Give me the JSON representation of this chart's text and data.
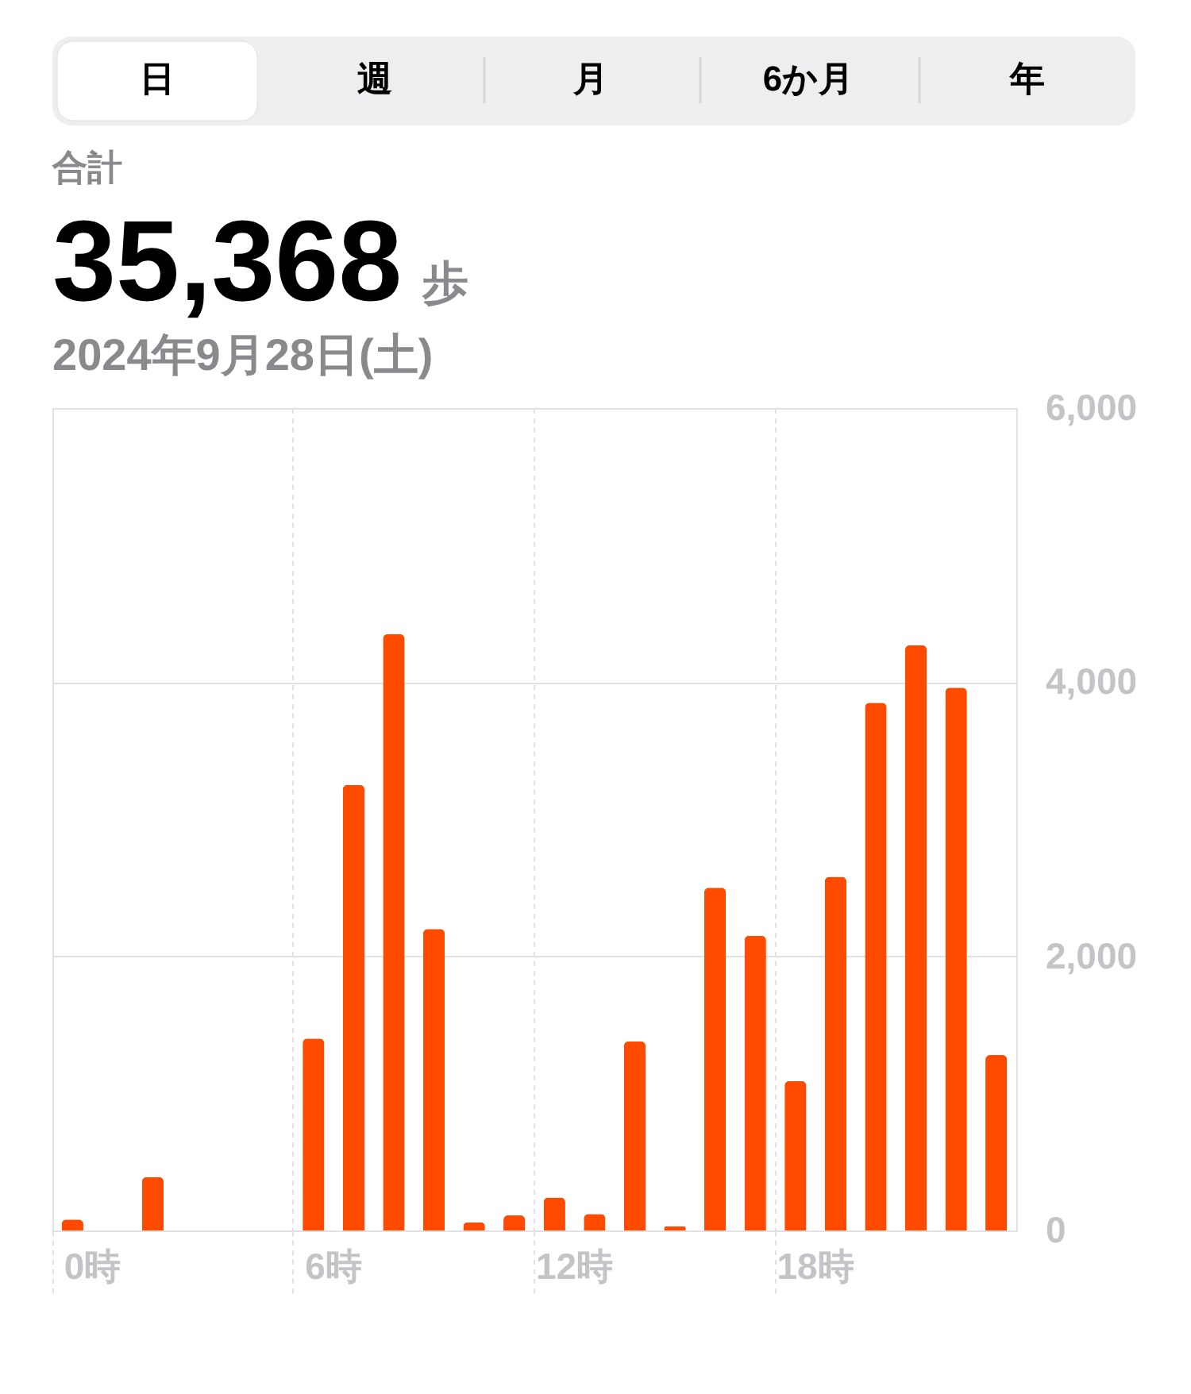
{
  "chart_data": {
    "type": "bar",
    "title": "35,368",
    "subtitle": "2024年9月28日(土)",
    "annotations": [
      "日",
      "週",
      "月",
      "6か月",
      "年",
      "合計",
      "歩"
    ],
    "categories": [
      "0時",
      null,
      null,
      null,
      null,
      null,
      "6時",
      null,
      null,
      null,
      null,
      null,
      "12時",
      null,
      null,
      null,
      null,
      null,
      "18時",
      null,
      null,
      null,
      null,
      null
    ],
    "values": [
      80,
      null,
      390,
      null,
      null,
      null,
      1400,
      3250,
      4350,
      2200,
      60,
      110,
      240,
      120,
      1380,
      30,
      2500,
      2150,
      1090,
      2580,
      3850,
      4270,
      3960,
      1280
    ],
    "color": "#ff4b00",
    "ylim": [
      0,
      6000
    ],
    "yticks": [
      0,
      {
        "value": 2000,
        "label": "2,000"
      },
      {
        "value": 4000,
        "label": "4,000"
      },
      {
        "value": 6000,
        "label": "6,000"
      }
    ],
    "grid": true
  }
}
